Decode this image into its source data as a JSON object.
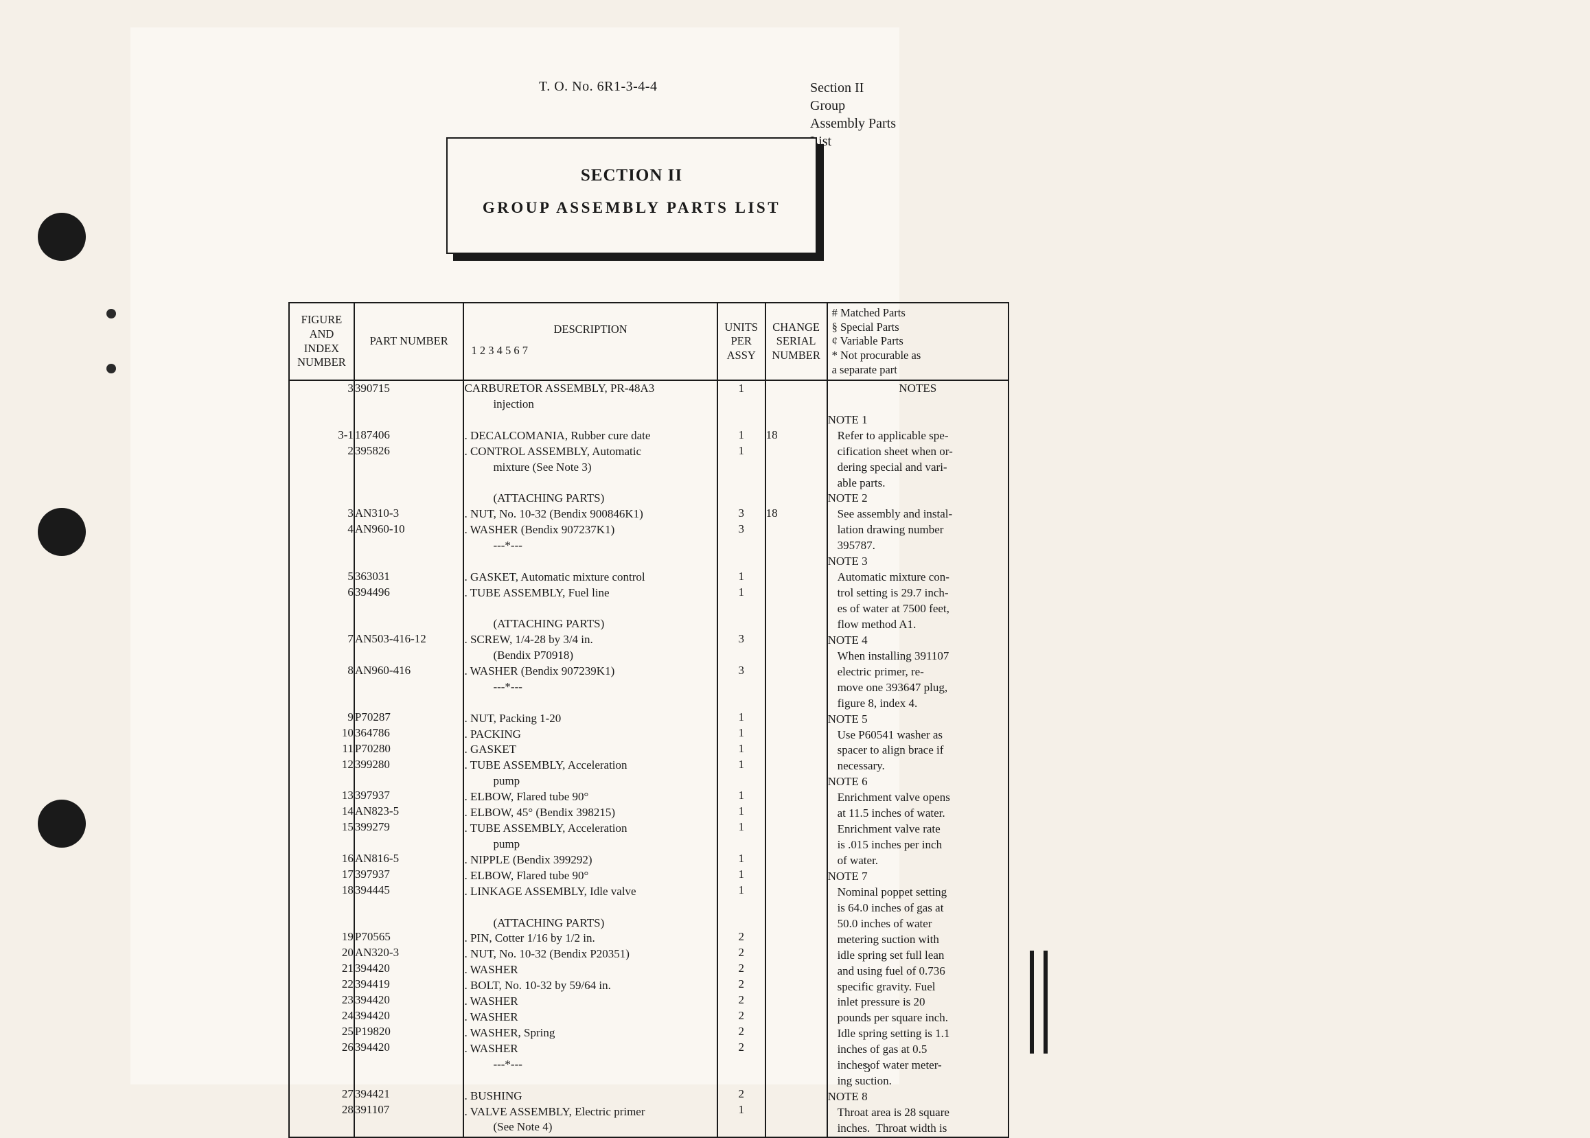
{
  "doc": {
    "to_number": "T. O. No. 6R1-3-4-4",
    "section_label": "Section II",
    "section_subtitle": "Group Assembly Parts List",
    "title_section": "SECTION II",
    "title_text": "GROUP ASSEMBLY PARTS LIST",
    "page_number": "3"
  },
  "columns": {
    "figure": [
      "FIGURE",
      "AND",
      "INDEX",
      "NUMBER"
    ],
    "part": "PART\nNUMBER",
    "description": "DESCRIPTION",
    "desc_sub": "1 2 3 4 5 6 7",
    "units": [
      "UNITS",
      "PER",
      "ASSY"
    ],
    "change": [
      "CHANGE",
      "SERIAL",
      "NUMBER"
    ],
    "legend": [
      "#  Matched Parts",
      "§  Special Parts",
      "¢  Variable Parts",
      "*  Not procurable as",
      "    a separate part"
    ]
  },
  "rows": [
    {
      "fig": "3",
      "part": "390715",
      "desc": "CARBURETOR ASSEMBLY, PR-48A3",
      "units": "1",
      "chg": ""
    },
    {
      "fig": "",
      "part": "",
      "desc_ind": 3,
      "desc": "injection",
      "units": "",
      "chg": ""
    },
    {
      "blank": true
    },
    {
      "fig": "3-1",
      "part": "187406",
      "desc": ". DECALCOMANIA, Rubber cure date",
      "units": "1",
      "chg": "18"
    },
    {
      "fig": "2",
      "part": "395826",
      "desc": ". CONTROL ASSEMBLY, Automatic",
      "units": "1",
      "chg": ""
    },
    {
      "fig": "",
      "part": "",
      "desc_ind": 3,
      "desc": "mixture (See Note 3)",
      "units": "",
      "chg": ""
    },
    {
      "blank": true
    },
    {
      "fig": "",
      "part": "",
      "desc_ind": 3,
      "desc": "(ATTACHING PARTS)",
      "units": "",
      "chg": ""
    },
    {
      "fig": "3",
      "part": "AN310-3",
      "desc": ". NUT, No. 10-32 (Bendix 900846K1)",
      "units": "3",
      "chg": "18"
    },
    {
      "fig": "4",
      "part": "AN960-10",
      "desc": ". WASHER (Bendix 907237K1)",
      "units": "3",
      "chg": ""
    },
    {
      "fig": "",
      "part": "",
      "desc_ind": 3,
      "desc": "---*---",
      "units": "",
      "chg": ""
    },
    {
      "blank": true
    },
    {
      "fig": "5",
      "part": "363031",
      "desc": ". GASKET, Automatic mixture control",
      "units": "1",
      "chg": ""
    },
    {
      "fig": "6",
      "part": "394496",
      "desc": ". TUBE ASSEMBLY, Fuel line",
      "units": "1",
      "chg": ""
    },
    {
      "blank": true
    },
    {
      "fig": "",
      "part": "",
      "desc_ind": 3,
      "desc": "(ATTACHING PARTS)",
      "units": "",
      "chg": ""
    },
    {
      "fig": "7",
      "part": "AN503-416-12",
      "desc": ". SCREW, 1/4-28 by 3/4 in.",
      "units": "3",
      "chg": ""
    },
    {
      "fig": "",
      "part": "",
      "desc_ind": 3,
      "desc": "(Bendix P70918)",
      "units": "",
      "chg": ""
    },
    {
      "fig": "8",
      "part": "AN960-416",
      "desc": ". WASHER (Bendix 907239K1)",
      "units": "3",
      "chg": ""
    },
    {
      "fig": "",
      "part": "",
      "desc_ind": 3,
      "desc": "---*---",
      "units": "",
      "chg": ""
    },
    {
      "blank": true
    },
    {
      "fig": "9",
      "part": "P70287",
      "desc": ". NUT, Packing 1-20",
      "units": "1",
      "chg": ""
    },
    {
      "fig": "10",
      "part": "364786",
      "desc": ". PACKING",
      "units": "1",
      "chg": ""
    },
    {
      "fig": "11",
      "part": "P70280",
      "desc": ". GASKET",
      "units": "1",
      "chg": ""
    },
    {
      "fig": "12",
      "part": "399280",
      "desc": ". TUBE ASSEMBLY, Acceleration",
      "units": "1",
      "chg": ""
    },
    {
      "fig": "",
      "part": "",
      "desc_ind": 3,
      "desc": "pump",
      "units": "",
      "chg": ""
    },
    {
      "fig": "13",
      "part": "397937",
      "desc": ". ELBOW, Flared tube 90°",
      "units": "1",
      "chg": ""
    },
    {
      "fig": "14",
      "part": "AN823-5",
      "desc": ". ELBOW, 45° (Bendix 398215)",
      "units": "1",
      "chg": ""
    },
    {
      "fig": "15",
      "part": "399279",
      "desc": ". TUBE ASSEMBLY, Acceleration",
      "units": "1",
      "chg": ""
    },
    {
      "fig": "",
      "part": "",
      "desc_ind": 3,
      "desc": "pump",
      "units": "",
      "chg": ""
    },
    {
      "fig": "16",
      "part": "AN816-5",
      "desc": ". NIPPLE (Bendix 399292)",
      "units": "1",
      "chg": ""
    },
    {
      "fig": "17",
      "part": "397937",
      "desc": ". ELBOW, Flared tube 90°",
      "units": "1",
      "chg": ""
    },
    {
      "fig": "18",
      "part": "394445",
      "desc": ". LINKAGE ASSEMBLY, Idle valve",
      "units": "1",
      "chg": ""
    },
    {
      "blank": true
    },
    {
      "fig": "",
      "part": "",
      "desc_ind": 3,
      "desc": "(ATTACHING PARTS)",
      "units": "",
      "chg": ""
    },
    {
      "fig": "19",
      "part": "P70565",
      "desc": ". PIN, Cotter 1/16 by 1/2 in.",
      "units": "2",
      "chg": ""
    },
    {
      "fig": "20",
      "part": "AN320-3",
      "desc": ". NUT, No. 10-32 (Bendix P20351)",
      "units": "2",
      "chg": ""
    },
    {
      "fig": "21",
      "part": "394420",
      "desc": ". WASHER",
      "units": "2",
      "chg": ""
    },
    {
      "fig": "22",
      "part": "394419",
      "desc": ". BOLT, No. 10-32 by 59/64 in.",
      "units": "2",
      "chg": ""
    },
    {
      "fig": "23",
      "part": "394420",
      "desc": ". WASHER",
      "units": "2",
      "chg": ""
    },
    {
      "fig": "24",
      "part": "394420",
      "desc": ". WASHER",
      "units": "2",
      "chg": ""
    },
    {
      "fig": "25",
      "part": "P19820",
      "desc": ". WASHER, Spring",
      "units": "2",
      "chg": ""
    },
    {
      "fig": "26",
      "part": "394420",
      "desc": ". WASHER",
      "units": "2",
      "chg": ""
    },
    {
      "fig": "",
      "part": "",
      "desc_ind": 3,
      "desc": "---*---",
      "units": "",
      "chg": ""
    },
    {
      "blank": true
    },
    {
      "fig": "27",
      "part": "394421",
      "desc": ". BUSHING",
      "units": "2",
      "chg": ""
    },
    {
      "fig": "28",
      "part": "391107",
      "desc": ". VALVE ASSEMBLY, Electric primer",
      "units": "1",
      "chg": ""
    },
    {
      "fig": "",
      "part": "",
      "desc_ind": 3,
      "desc": "(See Note 4)",
      "units": "",
      "chg": ""
    }
  ],
  "notes_col": [
    {
      "text": "NOTES",
      "center": true
    },
    {
      "blank": true
    },
    {
      "text": "NOTE 1"
    },
    {
      "text": "Refer to applicable spe-",
      "ind": 1
    },
    {
      "text": "cification sheet when or-",
      "ind": 1
    },
    {
      "text": "dering special and vari-",
      "ind": 1
    },
    {
      "text": "able parts.",
      "ind": 1
    },
    {
      "text": "NOTE 2"
    },
    {
      "text": "See assembly and instal-",
      "ind": 1
    },
    {
      "text": "lation drawing number",
      "ind": 1
    },
    {
      "text": "395787.",
      "ind": 1
    },
    {
      "text": "NOTE 3"
    },
    {
      "text": "Automatic mixture con-",
      "ind": 1
    },
    {
      "text": "trol setting is 29.7 inch-",
      "ind": 1
    },
    {
      "text": "es of water at 7500 feet,",
      "ind": 1
    },
    {
      "text": "flow method A1.",
      "ind": 1
    },
    {
      "text": "NOTE 4"
    },
    {
      "text": "When installing 391107",
      "ind": 1
    },
    {
      "text": "electric primer, re-",
      "ind": 1
    },
    {
      "text": "move one 393647 plug,",
      "ind": 1
    },
    {
      "text": "figure 8, index 4.",
      "ind": 1
    },
    {
      "text": "NOTE 5"
    },
    {
      "text": "Use P60541 washer as",
      "ind": 1
    },
    {
      "text": "spacer to align brace if",
      "ind": 1
    },
    {
      "text": "necessary.",
      "ind": 1
    },
    {
      "text": "NOTE 6"
    },
    {
      "text": "Enrichment valve opens",
      "ind": 1
    },
    {
      "text": "at 11.5 inches of water.",
      "ind": 1
    },
    {
      "text": "Enrichment valve rate",
      "ind": 1
    },
    {
      "text": "is .015 inches per inch",
      "ind": 1
    },
    {
      "text": "of water.",
      "ind": 1
    },
    {
      "text": "NOTE 7"
    },
    {
      "text": "Nominal poppet setting",
      "ind": 1
    },
    {
      "text": "is 64.0 inches of gas at",
      "ind": 1
    },
    {
      "text": "50.0 inches of water",
      "ind": 1
    },
    {
      "text": "metering suction with",
      "ind": 1
    },
    {
      "text": "idle spring set full lean",
      "ind": 1
    },
    {
      "text": "and using fuel of 0.736",
      "ind": 1
    },
    {
      "text": "specific gravity. Fuel",
      "ind": 1
    },
    {
      "text": "inlet pressure is 20",
      "ind": 1
    },
    {
      "text": "pounds per square inch.",
      "ind": 1
    },
    {
      "text": "Idle spring setting is 1.1",
      "ind": 1
    },
    {
      "text": "inches of gas at 0.5",
      "ind": 1
    },
    {
      "text": "inches of water meter-",
      "ind": 1
    },
    {
      "text": "ing suction.",
      "ind": 1
    },
    {
      "text": "NOTE 8"
    },
    {
      "text": "Throat area is 28 square",
      "ind": 1
    },
    {
      "text": "inches.  Throat width is",
      "ind": 1
    }
  ]
}
